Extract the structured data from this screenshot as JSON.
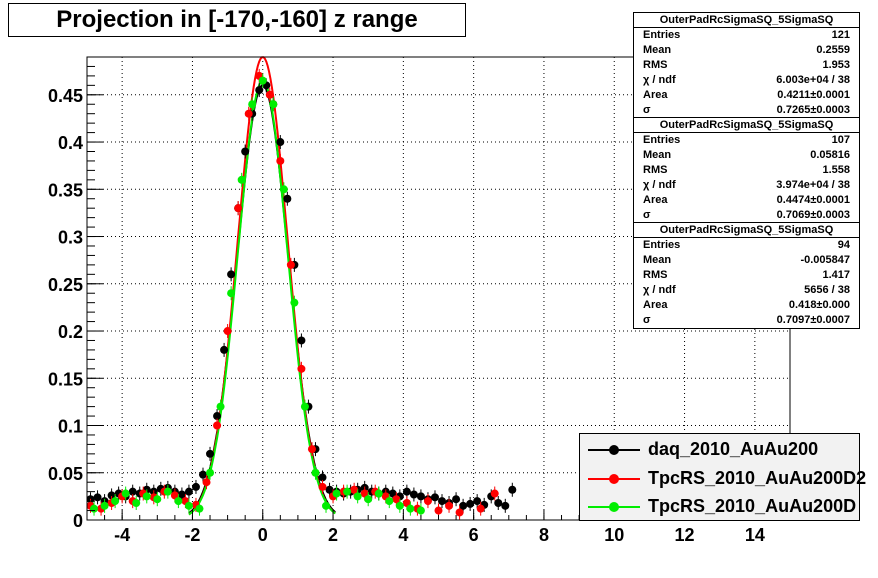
{
  "title": "Projection in [-170,-160] z range",
  "stats": [
    {
      "name": "OuterPadRcSigmaSQ_5SigmaSQ",
      "rows": [
        {
          "k": "Entries",
          "v": "121"
        },
        {
          "k": "Mean",
          "v": "0.2559"
        },
        {
          "k": "RMS",
          "v": "1.953"
        },
        {
          "k": "χ  / ndf",
          "v": "6.003e+04 / 38"
        },
        {
          "k": "Area",
          "v": "0.4211±0.0001"
        },
        {
          "k": "σ",
          "v": "0.7265±0.0003"
        }
      ]
    },
    {
      "name": "OuterPadRcSigmaSQ_5SigmaSQ",
      "rows": [
        {
          "k": "Entries",
          "v": "107"
        },
        {
          "k": "Mean",
          "v": "0.05816"
        },
        {
          "k": "RMS",
          "v": "1.558"
        },
        {
          "k": "χ  / ndf",
          "v": "3.974e+04 / 38"
        },
        {
          "k": "Area",
          "v": "0.4474±0.0001"
        },
        {
          "k": "σ",
          "v": "0.7069±0.0003"
        }
      ]
    },
    {
      "name": "OuterPadRcSigmaSQ_5SigmaSQ",
      "rows": [
        {
          "k": "Entries",
          "v": "94"
        },
        {
          "k": "Mean",
          "v": "-0.005847"
        },
        {
          "k": "RMS",
          "v": "1.417"
        },
        {
          "k": "χ  / ndf",
          "v": "5656 / 38"
        },
        {
          "k": "Area",
          "v": "0.418±0.000"
        },
        {
          "k": "σ",
          "v": "0.7097±0.0007"
        }
      ]
    }
  ],
  "chart_data": {
    "type": "scatter",
    "xlim": [
      -5,
      15
    ],
    "ylim": [
      0,
      0.49
    ],
    "xticks": [
      -4,
      -2,
      0,
      2,
      4,
      6,
      8,
      10,
      12,
      14
    ],
    "xtick_labels": [
      "-4",
      "-2",
      "0",
      "2",
      "4",
      "6",
      "8",
      "10",
      "12",
      "14"
    ],
    "yticks": [
      0,
      0.05,
      0.1,
      0.15,
      0.2,
      0.25,
      0.3,
      0.35,
      0.4,
      0.45
    ],
    "ytick_labels": [
      "0",
      "0.05",
      "0.1",
      "0.15",
      "0.2",
      "0.25",
      "0.3",
      "0.35",
      "0.4",
      "0.45"
    ],
    "grid": true,
    "legend": "bottom-right",
    "series": [
      {
        "name": "daq_2010_AuAu200",
        "color": "#000000",
        "sigma": 0.7265,
        "peak": 0.46,
        "x": [
          -4.9,
          -4.7,
          -4.5,
          -4.3,
          -4.1,
          -3.9,
          -3.7,
          -3.5,
          -3.3,
          -3.1,
          -2.9,
          -2.7,
          -2.5,
          -2.3,
          -2.1,
          -1.9,
          -1.7,
          -1.5,
          -1.3,
          -1.1,
          -0.9,
          -0.7,
          -0.5,
          -0.3,
          -0.1,
          0.1,
          0.3,
          0.5,
          0.7,
          0.9,
          1.1,
          1.3,
          1.5,
          1.7,
          1.9,
          2.1,
          2.3,
          2.5,
          2.7,
          2.9,
          3.1,
          3.3,
          3.5,
          3.7,
          3.9,
          4.1,
          4.3,
          4.5,
          4.7,
          4.9,
          5.1,
          5.3,
          5.5,
          5.7,
          5.9,
          6.1,
          6.3,
          6.5,
          6.7,
          6.9,
          7.1
        ],
        "y": [
          0.022,
          0.024,
          0.02,
          0.026,
          0.028,
          0.025,
          0.03,
          0.028,
          0.032,
          0.03,
          0.033,
          0.034,
          0.03,
          0.027,
          0.03,
          0.035,
          0.048,
          0.07,
          0.11,
          0.18,
          0.26,
          0.33,
          0.39,
          0.43,
          0.455,
          0.46,
          0.44,
          0.4,
          0.34,
          0.27,
          0.19,
          0.12,
          0.075,
          0.045,
          0.032,
          0.03,
          0.028,
          0.03,
          0.032,
          0.034,
          0.03,
          0.028,
          0.03,
          0.028,
          0.025,
          0.03,
          0.027,
          0.025,
          0.022,
          0.024,
          0.02,
          0.018,
          0.022,
          0.015,
          0.017,
          0.02,
          0.016,
          0.025,
          0.018,
          0.015,
          0.032
        ]
      },
      {
        "name": "TpcRS_2010_AuAu200D2",
        "color": "#ff0000",
        "sigma": 0.7069,
        "peak": 0.49,
        "x": [
          -4.9,
          -4.6,
          -4.3,
          -4.0,
          -3.7,
          -3.4,
          -3.1,
          -2.8,
          -2.5,
          -2.2,
          -1.9,
          -1.6,
          -1.3,
          -1.0,
          -0.7,
          -0.4,
          -0.1,
          0.2,
          0.5,
          0.8,
          1.1,
          1.4,
          1.7,
          2.0,
          2.3,
          2.6,
          2.9,
          3.2,
          3.5,
          3.8,
          4.1,
          4.4,
          4.7,
          5.0,
          5.3,
          5.6,
          6.2,
          6.6
        ],
        "y": [
          0.015,
          0.012,
          0.018,
          0.025,
          0.02,
          0.028,
          0.024,
          0.03,
          0.026,
          0.02,
          0.016,
          0.04,
          0.1,
          0.2,
          0.33,
          0.43,
          0.47,
          0.45,
          0.38,
          0.27,
          0.16,
          0.075,
          0.035,
          0.025,
          0.03,
          0.032,
          0.028,
          0.03,
          0.025,
          0.022,
          0.018,
          0.012,
          0.02,
          0.01,
          0.015,
          0.008,
          0.012,
          0.028
        ]
      },
      {
        "name": "TpcRS_2010_AuAu200D",
        "color": "#00ee00",
        "sigma": 0.7097,
        "peak": 0.465,
        "x": [
          -4.8,
          -4.5,
          -4.2,
          -3.9,
          -3.6,
          -3.3,
          -3.0,
          -2.7,
          -2.4,
          -2.1,
          -1.8,
          -1.5,
          -1.2,
          -0.9,
          -0.6,
          -0.3,
          0.0,
          0.3,
          0.6,
          0.9,
          1.2,
          1.5,
          1.8,
          2.1,
          2.4,
          2.7,
          3.0,
          3.3,
          3.6,
          3.9,
          4.2,
          4.5
        ],
        "y": [
          0.012,
          0.015,
          0.02,
          0.028,
          0.018,
          0.025,
          0.022,
          0.03,
          0.02,
          0.015,
          0.012,
          0.05,
          0.12,
          0.24,
          0.36,
          0.44,
          0.465,
          0.44,
          0.35,
          0.23,
          0.12,
          0.05,
          0.015,
          0.028,
          0.03,
          0.025,
          0.022,
          0.028,
          0.02,
          0.015,
          0.012,
          0.01
        ]
      }
    ]
  }
}
